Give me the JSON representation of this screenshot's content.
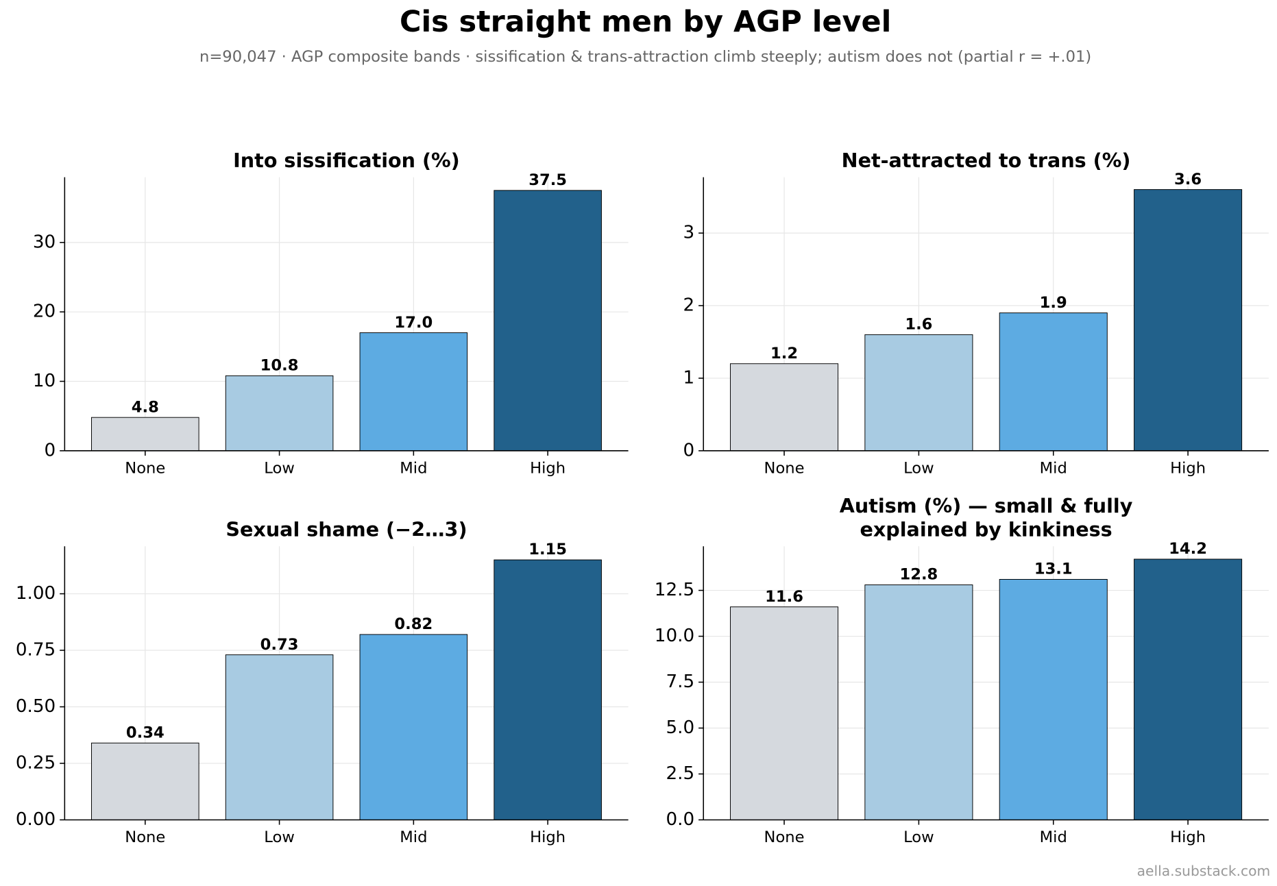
{
  "title": "Cis straight men by AGP level",
  "subtitle": "n=90,047 · AGP composite bands · sissification & trans-attraction climb steeply; autism does not (partial r = +.01)",
  "source": "aella.substack.com",
  "chart_data": [
    {
      "type": "bar",
      "title": "Into sissification (%)",
      "categories": [
        "None",
        "Low",
        "Mid",
        "High"
      ],
      "values": [
        4.8,
        10.8,
        17,
        37.5
      ],
      "value_labels": [
        "4.8",
        "10.8",
        "17.0",
        "37.5"
      ],
      "colors": [
        "#d5d9de",
        "#a8cbe2",
        "#5dabe2",
        "#22618b"
      ],
      "ylim": [
        0,
        39.4
      ],
      "yticks": [
        0,
        10,
        20,
        30
      ],
      "grid": true
    },
    {
      "type": "bar",
      "title": "Net-attracted to trans (%)",
      "categories": [
        "None",
        "Low",
        "Mid",
        "High"
      ],
      "values": [
        1.2,
        1.6,
        1.9,
        3.6
      ],
      "colors": [
        "#d5d9de",
        "#a8cbe2",
        "#5dabe2",
        "#22618b"
      ],
      "ylim": [
        0,
        3.77
      ],
      "yticks": [
        0,
        1,
        2,
        3
      ],
      "grid": true
    },
    {
      "type": "bar",
      "title": "Sexual shame (−2…3)",
      "categories": [
        "None",
        "Low",
        "Mid",
        "High"
      ],
      "values": [
        0.34,
        0.73,
        0.82,
        1.15
      ],
      "colors": [
        "#d5d9de",
        "#a8cbe2",
        "#5dabe2",
        "#22618b"
      ],
      "ylim": [
        0,
        1.21
      ],
      "yticks": [
        {
          "value": 0,
          "label": "0.00"
        },
        0.25,
        {
          "value": 0.5,
          "label": "0.50"
        },
        0.75,
        {
          "value": 1,
          "label": "1.00"
        }
      ],
      "grid": true
    },
    {
      "type": "bar",
      "title": "Autism (%) — small & fully\nexplained by kinkiness",
      "categories": [
        "None",
        "Low",
        "Mid",
        "High"
      ],
      "values": [
        11.6,
        12.8,
        13.1,
        14.2
      ],
      "colors": [
        "#d5d9de",
        "#a8cbe2",
        "#5dabe2",
        "#22618b"
      ],
      "ylim": [
        0,
        14.9
      ],
      "yticks": [
        {
          "value": 0,
          "label": "0.0"
        },
        2.5,
        {
          "value": 5,
          "label": "5.0"
        },
        7.5,
        {
          "value": 10,
          "label": "10.0"
        },
        12.5
      ],
      "grid": true
    }
  ]
}
